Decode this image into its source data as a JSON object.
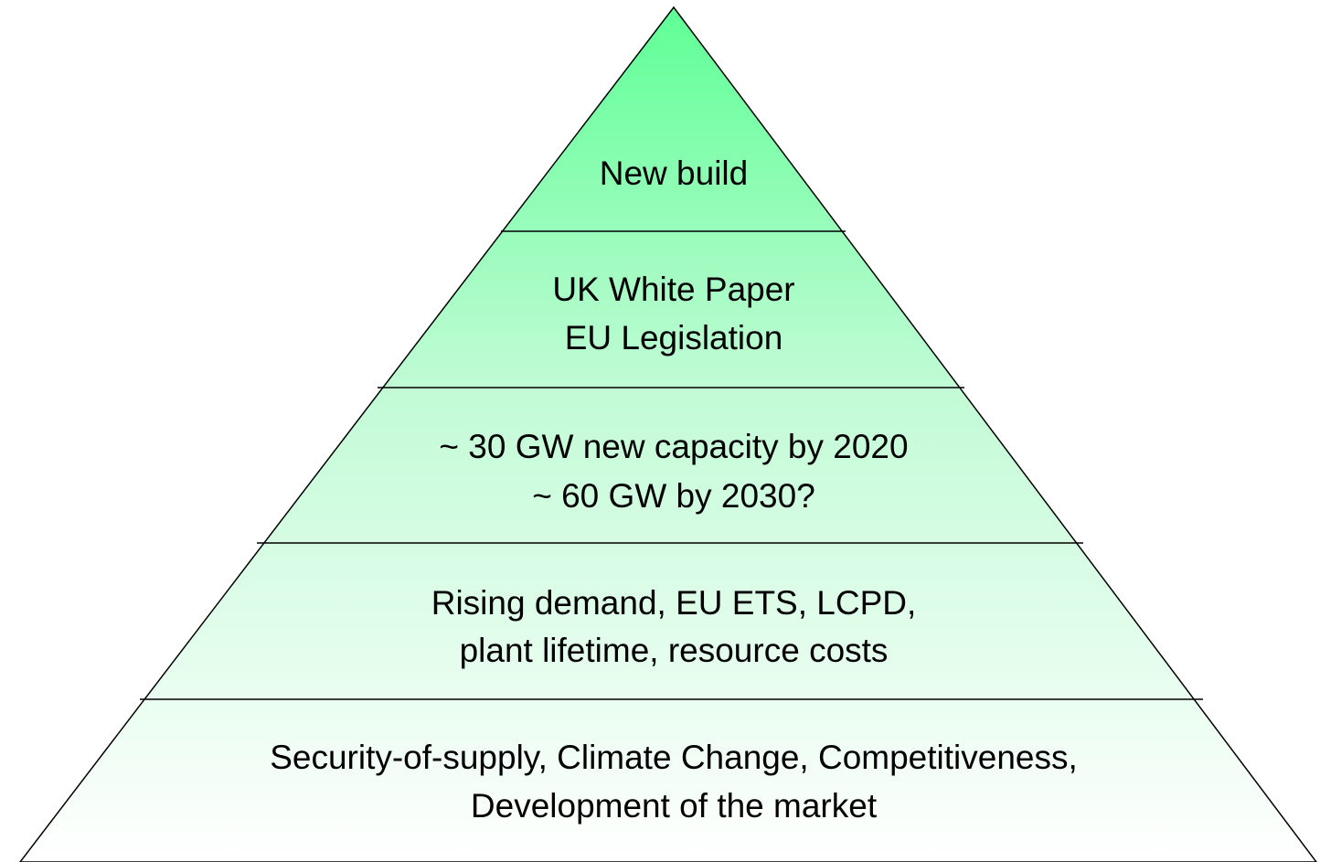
{
  "layers": [
    {
      "lines": [
        "New build"
      ]
    },
    {
      "lines": [
        "UK White Paper",
        "EU Legislation"
      ]
    },
    {
      "lines": [
        "~ 30 GW new capacity by 2020",
        "~ 60 GW by 2030?"
      ]
    },
    {
      "lines": [
        "Rising demand, EU ETS, LCPD,",
        "plant lifetime, resource costs"
      ]
    },
    {
      "lines": [
        "Security-of-supply, Climate Change, Competitiveness,",
        "Development of the market"
      ]
    }
  ]
}
